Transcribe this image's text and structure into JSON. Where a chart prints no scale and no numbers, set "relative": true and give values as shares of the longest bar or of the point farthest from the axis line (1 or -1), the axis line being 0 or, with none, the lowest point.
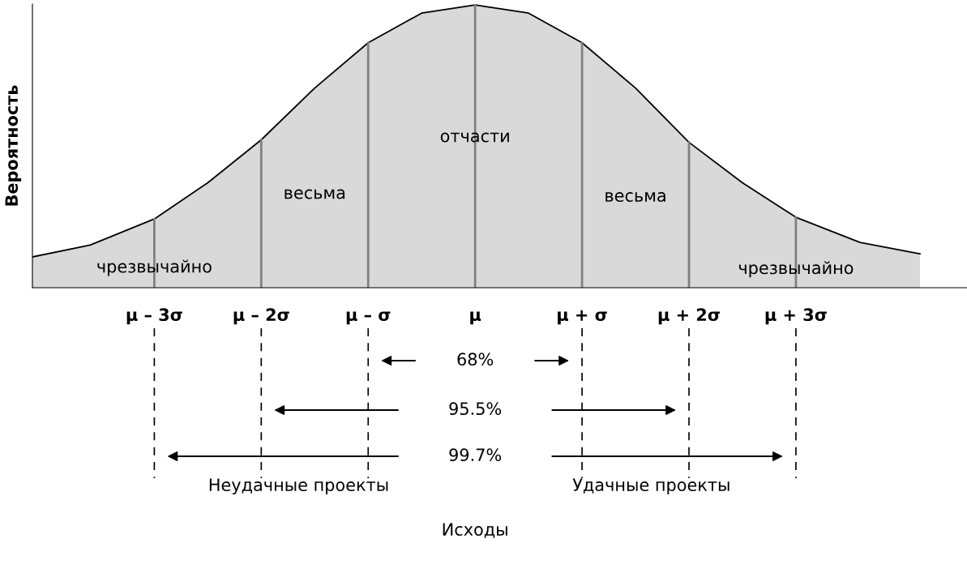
{
  "chart_data": {
    "type": "area",
    "relative": true,
    "ylabel": "Вероятность",
    "x": [
      -4.14,
      -3.6,
      -3,
      -2.5,
      -2,
      -1.5,
      -1,
      -0.5,
      0,
      0.5,
      1,
      1.5,
      2,
      2.5,
      3,
      3.6,
      4.16
    ],
    "series": [
      {
        "color": "#d9d9d9",
        "values": [
          0.109,
          0.151,
          0.243,
          0.371,
          0.523,
          0.706,
          0.866,
          0.971,
          1.0,
          0.971,
          0.866,
          0.706,
          0.514,
          0.371,
          0.249,
          0.16,
          0.12
        ]
      }
    ],
    "xlim": [
      -4.14,
      4.6
    ],
    "xticks": [
      {
        "value": -3,
        "label": "μ – 3σ"
      },
      {
        "value": -2,
        "label": "μ – 2σ"
      },
      {
        "value": -1,
        "label": "μ – σ"
      },
      {
        "value": 0,
        "label": "μ"
      },
      {
        "value": 1,
        "label": "μ + σ"
      },
      {
        "value": 2,
        "label": "μ + 2σ"
      },
      {
        "value": 3,
        "label": "μ + 3σ"
      }
    ],
    "ref_lines": [
      {
        "axis": "x",
        "value": -3,
        "color": "#808080"
      },
      {
        "axis": "x",
        "value": -2,
        "color": "#808080"
      },
      {
        "axis": "x",
        "value": -1,
        "color": "#808080"
      },
      {
        "axis": "x",
        "value": 0,
        "color": "#808080"
      },
      {
        "axis": "x",
        "value": 1,
        "color": "#808080"
      },
      {
        "axis": "x",
        "value": 2,
        "color": "#808080"
      },
      {
        "axis": "x",
        "value": 3,
        "color": "#808080"
      }
    ],
    "annotations": [
      "чрезвычайно",
      "весьма",
      "отчасти",
      "весьма",
      "чрезвычайно",
      "68%",
      "95.5%",
      "99.7%",
      "Неудачные проекты",
      "Удачные проекты",
      "Исходы"
    ],
    "grid": false,
    "legend": false
  }
}
